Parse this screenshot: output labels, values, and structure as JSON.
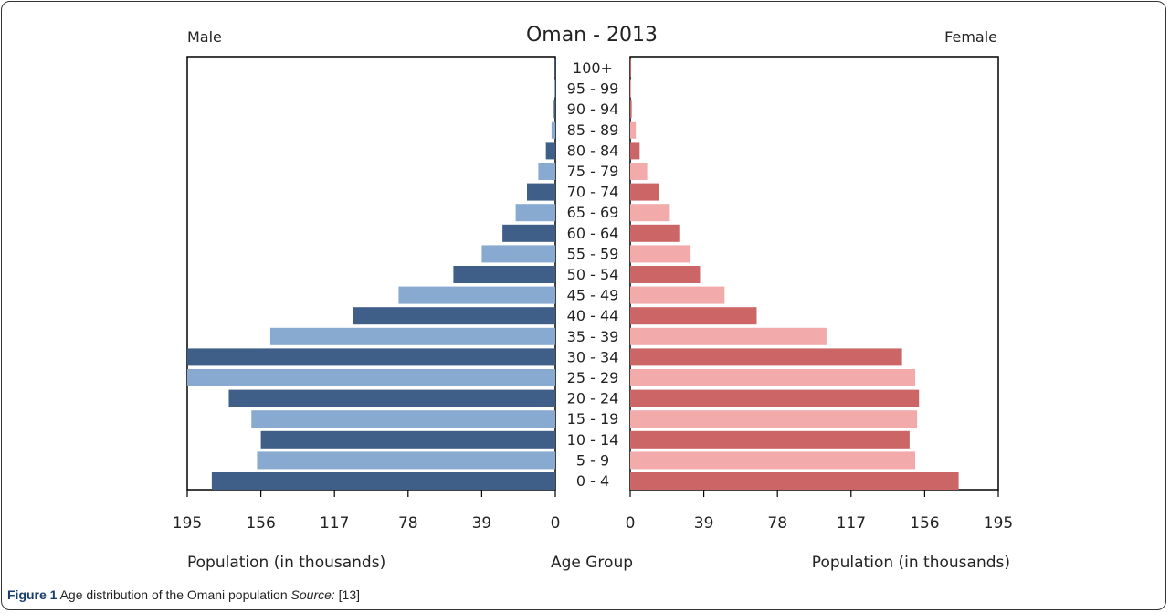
{
  "chart_data": {
    "type": "bar",
    "title": "Oman - 2013",
    "left_label": "Male",
    "right_label": "Female",
    "center_label": "Age Group",
    "xlabel_left": "Population (in thousands)",
    "xlabel_right": "Population (in thousands)",
    "xlim": [
      0,
      195
    ],
    "ticks": [
      "195",
      "156",
      "117",
      "78",
      "39",
      "0"
    ],
    "ticks_right": [
      "0",
      "39",
      "78",
      "117",
      "156",
      "195"
    ],
    "categories": [
      "100+",
      "95 - 99",
      "90 - 94",
      "85 - 89",
      "80 - 84",
      "75 - 79",
      "70 - 74",
      "65 - 69",
      "60 - 64",
      "55 - 59",
      "50 - 54",
      "45 - 49",
      "40 - 44",
      "35 - 39",
      "30 - 34",
      "25 - 29",
      "20 - 24",
      "15 - 19",
      "10 - 14",
      "5 - 9",
      "0 - 4"
    ],
    "series": [
      {
        "name": "Male",
        "values": [
          0.3,
          0.5,
          0.8,
          2,
          5,
          9,
          15,
          21,
          28,
          39,
          54,
          83,
          107,
          151,
          195,
          195,
          173,
          161,
          156,
          158,
          182
        ]
      },
      {
        "name": "Female",
        "values": [
          0.3,
          0.5,
          0.8,
          3,
          5,
          9,
          15,
          21,
          26,
          32,
          37,
          50,
          67,
          104,
          144,
          151,
          153,
          152,
          148,
          151,
          174
        ]
      }
    ],
    "colors": {
      "male_dark": "#3f5f88",
      "male_light": "#88a9d0",
      "female_dark": "#cc6666",
      "female_light": "#f2aaaa"
    }
  },
  "caption": {
    "label": "Figure 1",
    "text": " Age distribution of the Omani population ",
    "source_word": "Source:",
    "ref": " [13]"
  }
}
